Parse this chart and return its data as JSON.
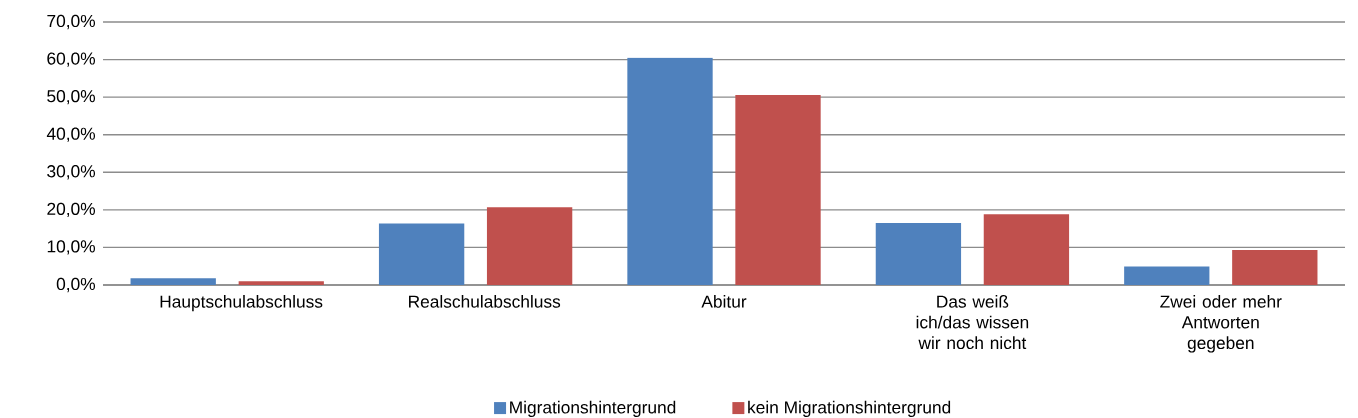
{
  "chart_data": {
    "type": "bar",
    "categories": [
      "Hauptschulabschluss",
      "Realschulabschluss",
      "Abitur",
      "Das weiß ich/das wissen wir noch nicht",
      "Zwei oder mehr Antworten gegeben"
    ],
    "series": [
      {
        "name": "Migrationshintergrund",
        "color": "#4f81bd",
        "values": [
          1.8,
          16.4,
          60.5,
          16.5,
          4.9
        ]
      },
      {
        "name": "kein Migrationshintergrund",
        "color": "#c0504d",
        "values": [
          1.0,
          20.7,
          50.6,
          18.8,
          9.3
        ]
      }
    ],
    "ylim": [
      0,
      70
    ],
    "yticks": [
      {
        "value": 0,
        "label": "0,0%"
      },
      {
        "value": 10,
        "label": "10,0%"
      },
      {
        "value": 20,
        "label": "20,0%"
      },
      {
        "value": 30,
        "label": "30,0%"
      },
      {
        "value": 40,
        "label": "40,0%"
      },
      {
        "value": 50,
        "label": "50,0%"
      },
      {
        "value": 60,
        "label": "60,0%"
      },
      {
        "value": 70,
        "label": "70,0%"
      }
    ],
    "grid": "y",
    "legend": "bottom"
  }
}
